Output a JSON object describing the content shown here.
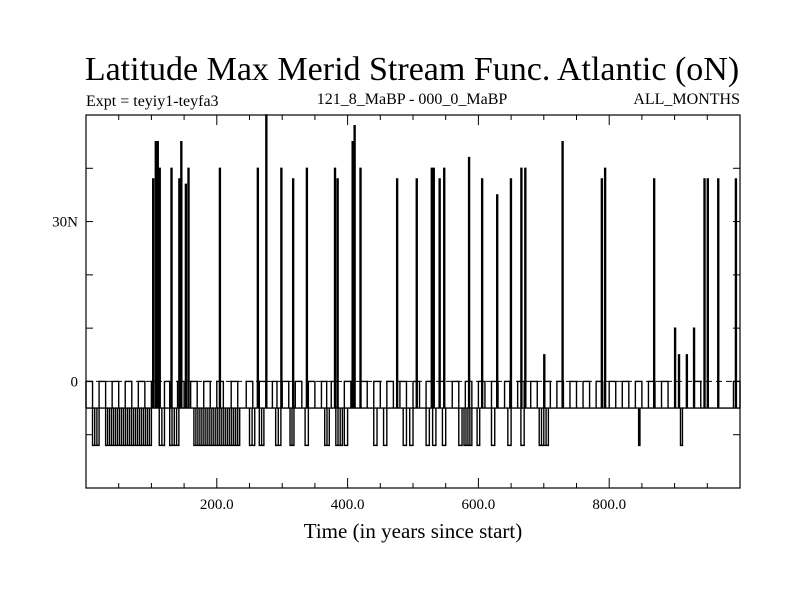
{
  "chart_data": {
    "type": "line",
    "title": "Latitude Max Merid Stream Func. Atlantic (oN)",
    "subtitle_left": "Expt = teyiy1-teyfa3",
    "subtitle_center": "121_8_MaBP - 000_0_MaBP",
    "subtitle_right": "ALL_MONTHS",
    "xlabel": "Time (in years since start)",
    "ylabel": "",
    "xlim": [
      0,
      1000
    ],
    "ylim": [
      -20,
      50
    ],
    "x_ticks": [
      200,
      400,
      600,
      800
    ],
    "x_tick_labels": [
      "200.0",
      "400.0",
      "600.0",
      "800.0"
    ],
    "y_ticks": [
      0,
      30
    ],
    "y_tick_labels": [
      "0",
      "30N"
    ],
    "baseline": -5,
    "low_value": -12,
    "mid_value": 0,
    "spikes": [
      {
        "x": 102,
        "y": 38
      },
      {
        "x": 106,
        "y": 45
      },
      {
        "x": 109,
        "y": 45
      },
      {
        "x": 112,
        "y": 40
      },
      {
        "x": 130,
        "y": 40
      },
      {
        "x": 142,
        "y": 38
      },
      {
        "x": 145,
        "y": 45
      },
      {
        "x": 152,
        "y": 37
      },
      {
        "x": 156,
        "y": 40
      },
      {
        "x": 204,
        "y": 40
      },
      {
        "x": 262,
        "y": 40
      },
      {
        "x": 275,
        "y": 50
      },
      {
        "x": 298,
        "y": 40
      },
      {
        "x": 316,
        "y": 38
      },
      {
        "x": 337,
        "y": 40
      },
      {
        "x": 380,
        "y": 40
      },
      {
        "x": 384,
        "y": 38
      },
      {
        "x": 407,
        "y": 45
      },
      {
        "x": 410,
        "y": 48
      },
      {
        "x": 419,
        "y": 40
      },
      {
        "x": 475,
        "y": 38
      },
      {
        "x": 505,
        "y": 38
      },
      {
        "x": 528,
        "y": 40
      },
      {
        "x": 531,
        "y": 40
      },
      {
        "x": 540,
        "y": 38
      },
      {
        "x": 547,
        "y": 40
      },
      {
        "x": 585,
        "y": 42
      },
      {
        "x": 605,
        "y": 38
      },
      {
        "x": 628,
        "y": 35
      },
      {
        "x": 649,
        "y": 38
      },
      {
        "x": 665,
        "y": 40
      },
      {
        "x": 671,
        "y": 40
      },
      {
        "x": 700,
        "y": 5
      },
      {
        "x": 728,
        "y": 45
      },
      {
        "x": 788,
        "y": 38
      },
      {
        "x": 793,
        "y": 40
      },
      {
        "x": 868,
        "y": 38
      },
      {
        "x": 900,
        "y": 10
      },
      {
        "x": 906,
        "y": 5
      },
      {
        "x": 918,
        "y": 5
      },
      {
        "x": 929,
        "y": 10
      },
      {
        "x": 945,
        "y": 38
      },
      {
        "x": 950,
        "y": 38
      },
      {
        "x": 966,
        "y": 38
      },
      {
        "x": 993,
        "y": 38
      }
    ],
    "low_segments": [
      [
        10,
        20
      ],
      [
        30,
        100
      ],
      [
        112,
        120
      ],
      [
        128,
        142
      ],
      [
        165,
        235
      ],
      [
        250,
        258
      ],
      [
        265,
        272
      ],
      [
        290,
        298
      ],
      [
        312,
        318
      ],
      [
        335,
        340
      ],
      [
        365,
        372
      ],
      [
        382,
        392
      ],
      [
        395,
        400
      ],
      [
        440,
        445
      ],
      [
        455,
        460
      ],
      [
        485,
        490
      ],
      [
        495,
        500
      ],
      [
        520,
        525
      ],
      [
        530,
        535
      ],
      [
        545,
        550
      ],
      [
        570,
        575
      ],
      [
        578,
        590
      ],
      [
        598,
        602
      ],
      [
        620,
        625
      ],
      [
        645,
        650
      ],
      [
        665,
        670
      ],
      [
        693,
        707
      ],
      [
        845,
        847
      ],
      [
        909,
        912
      ]
    ],
    "mid_segments": [
      [
        0,
        10
      ],
      [
        20,
        30
      ],
      [
        40,
        50
      ],
      [
        60,
        70
      ],
      [
        80,
        90
      ],
      [
        100,
        110
      ],
      [
        120,
        128
      ],
      [
        140,
        150
      ],
      [
        160,
        170
      ],
      [
        180,
        190
      ],
      [
        200,
        210
      ],
      [
        222,
        232
      ],
      [
        245,
        255
      ],
      [
        265,
        275
      ],
      [
        285,
        292
      ],
      [
        300,
        310
      ],
      [
        320,
        330
      ],
      [
        340,
        350
      ],
      [
        360,
        368
      ],
      [
        375,
        385
      ],
      [
        395,
        405
      ],
      [
        420,
        430
      ],
      [
        440,
        450
      ],
      [
        460,
        470
      ],
      [
        480,
        490
      ],
      [
        500,
        510
      ],
      [
        520,
        530
      ],
      [
        540,
        548
      ],
      [
        560,
        570
      ],
      [
        580,
        590
      ],
      [
        600,
        610
      ],
      [
        620,
        630
      ],
      [
        640,
        648
      ],
      [
        660,
        670
      ],
      [
        680,
        690
      ],
      [
        700,
        710
      ],
      [
        720,
        730
      ],
      [
        740,
        750
      ],
      [
        760,
        770
      ],
      [
        780,
        790
      ],
      [
        800,
        810
      ],
      [
        820,
        830
      ],
      [
        840,
        850
      ],
      [
        860,
        870
      ],
      [
        880,
        890
      ],
      [
        930,
        940
      ],
      [
        990,
        1000
      ]
    ]
  }
}
